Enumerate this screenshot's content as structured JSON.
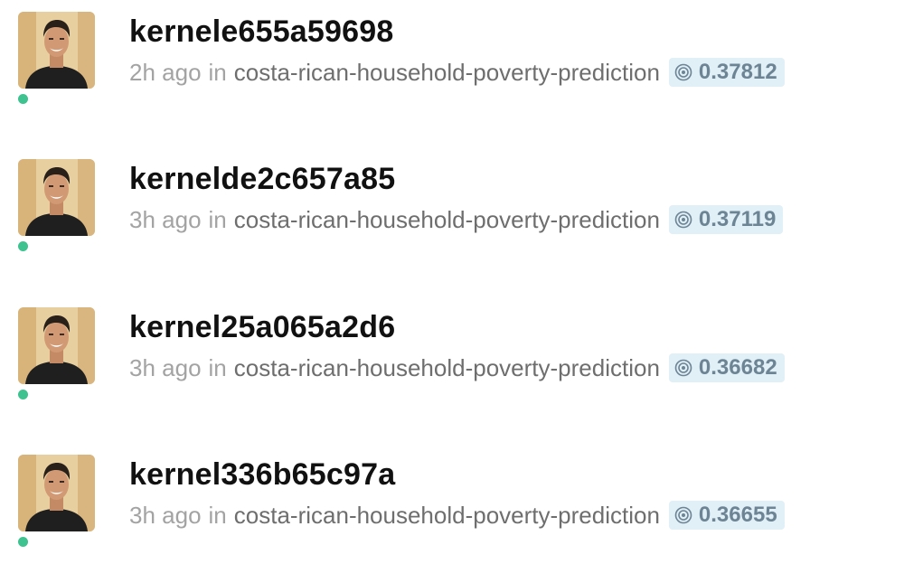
{
  "kernels": [
    {
      "title": "kernele655a59698",
      "time": "2h ago",
      "in_word": "in",
      "competition": "costa-rican-household-poverty-prediction",
      "score": "0.37812",
      "icon": "target-icon",
      "online": true
    },
    {
      "title": "kernelde2c657a85",
      "time": "3h ago",
      "in_word": "in",
      "competition": "costa-rican-household-poverty-prediction",
      "score": "0.37119",
      "icon": "target-icon",
      "online": true
    },
    {
      "title": "kernel25a065a2d6",
      "time": "3h ago",
      "in_word": "in",
      "competition": "costa-rican-household-poverty-prediction",
      "score": "0.36682",
      "icon": "target-icon",
      "online": true
    },
    {
      "title": "kernel336b65c97a",
      "time": "3h ago",
      "in_word": "in",
      "competition": "costa-rican-household-poverty-prediction",
      "score": "0.36655",
      "icon": "target-icon",
      "online": true
    }
  ],
  "colors": {
    "online_dot": "#3ec28f",
    "badge_bg": "#e1eff7",
    "badge_text": "#6c8494",
    "title": "#111111",
    "meta_muted": "#a3a3a3",
    "competition": "#6e6e6e"
  }
}
